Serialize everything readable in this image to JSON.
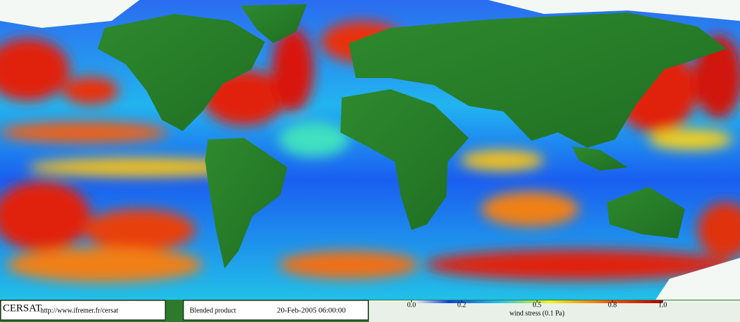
{
  "footer": {
    "logo": "CERSAT",
    "url": "http://www.ifremer.fr/cersat",
    "product": "Blended product",
    "date": "20-Feb-2005 06:00:00"
  },
  "colorbar": {
    "label": "wind stress (0.1 Pa)",
    "lim": [
      0,
      1
    ],
    "ticks": [
      {
        "value": 0,
        "label": "0.0"
      },
      0.2,
      0.5,
      0.8,
      {
        "value": 1,
        "label": "1.0"
      }
    ]
  }
}
